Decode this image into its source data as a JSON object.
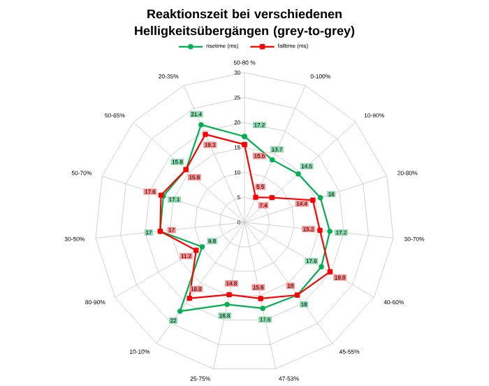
{
  "chart_data": {
    "type": "radar",
    "title": "Reaktionszeit bei verschiedenen Helligkeitsübergängen (grey-to-grey)",
    "categories": [
      "50-80 %",
      "0-100%",
      "10-90%",
      "20-80%",
      "30-70%",
      "40-60%",
      "45-55%",
      "47-53%",
      "25-75%",
      "10-10%",
      "80-90%",
      "30-50%",
      "50-70%",
      "50-65%",
      "20-35%"
    ],
    "series": [
      {
        "name": "risetime (ms)",
        "color": "#00b050",
        "marker": "circle",
        "values": [
          17.2,
          13.7,
          14.5,
          16,
          17.2,
          17.8,
          18,
          17.6,
          16.8,
          22,
          9.8,
          17,
          17.1,
          15.8,
          21.4
        ]
      },
      {
        "name": "falltime (ms)",
        "color": "#ff0000",
        "marker": "square",
        "values": [
          15.6,
          5.5,
          7.4,
          14.4,
          15.2,
          19.8,
          18,
          15.6,
          14.8,
          18.8,
          11.2,
          17,
          17.6,
          15.8,
          19.3
        ]
      }
    ],
    "ylim": [
      0,
      30
    ],
    "yticks": [
      0,
      5,
      10,
      15,
      20,
      25,
      30
    ],
    "grid": true,
    "legend": "top",
    "data_labels": true
  }
}
